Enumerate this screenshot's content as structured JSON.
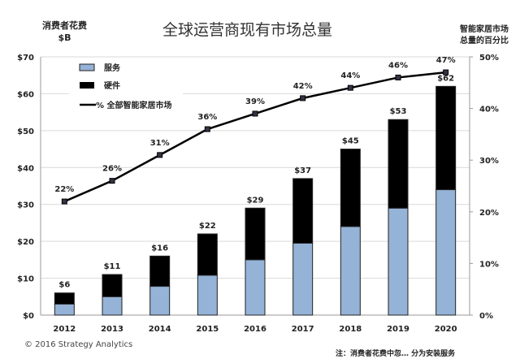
{
  "chart_data": {
    "type": "bar",
    "title": "全球运营商现有市场总量",
    "ylabel": "消费者花费 $B",
    "y2label": "智能家居市场总量的百分比",
    "categories": [
      "2012",
      "2013",
      "2014",
      "2015",
      "2016",
      "2017",
      "2018",
      "2019",
      "2020"
    ],
    "ylim": [
      0,
      70
    ],
    "yticks": [
      "$0",
      "$10",
      "$20",
      "$30",
      "$40",
      "$50",
      "$60",
      "$70"
    ],
    "y2lim": [
      0,
      50
    ],
    "y2ticks": [
      "0%",
      "10%",
      "20%",
      "30%",
      "40%",
      "50%"
    ],
    "series": [
      {
        "name": "服务",
        "type": "stacked-bar",
        "color": "#95b3d7",
        "values": [
          3,
          5,
          7.8,
          10.8,
          15,
          19.5,
          24,
          29,
          34
        ]
      },
      {
        "name": "硬件",
        "type": "stacked-bar",
        "color": "#000000",
        "values": [
          3,
          6,
          8.2,
          11.2,
          14,
          17.5,
          21,
          24,
          28
        ]
      },
      {
        "name": "% 全部智能家居市场",
        "type": "line",
        "axis": "right",
        "color": "#000000",
        "values": [
          22,
          26,
          31,
          36,
          39,
          42,
          44,
          46,
          47
        ]
      }
    ],
    "total_labels": [
      "$6",
      "$11",
      "$16",
      "$22",
      "$29",
      "$37",
      "$45",
      "$53",
      "$62"
    ],
    "line_labels": [
      "22%",
      "26%",
      "31%",
      "36%",
      "39%",
      "42%",
      "44%",
      "46%",
      "47%"
    ],
    "legend": "top-left",
    "grid": true
  },
  "header": {
    "ylabel_line1": "消费者花费",
    "ylabel_line2": "$B",
    "y2label_line1": "智能家居市场",
    "y2label_line2": "总量的百分比"
  },
  "footer": {
    "copyright": "© 2016  Strategy Analytics",
    "note": "注：消费者花费中忽… 分为安装服务"
  }
}
